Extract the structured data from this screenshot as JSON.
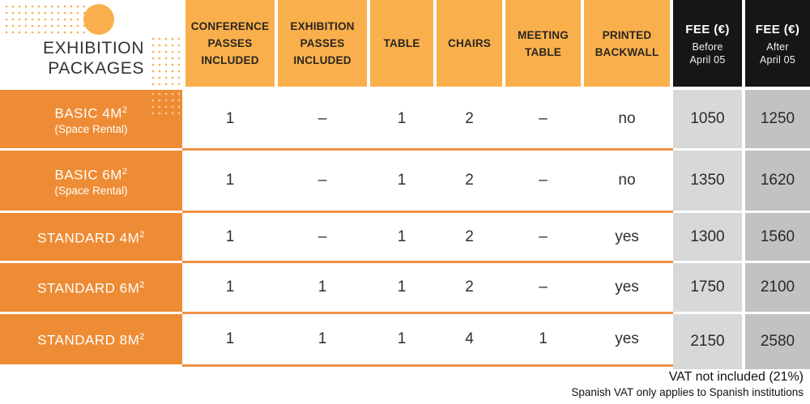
{
  "title": {
    "line1": "EXHIBITION",
    "line2": "PACKAGES"
  },
  "header": {
    "columns": [
      {
        "label": "CONFERENCE PASSES INCLUDED"
      },
      {
        "label": "EXHIBITION PASSES INCLUDED"
      },
      {
        "label": "TABLE"
      },
      {
        "label": "CHAIRS"
      },
      {
        "label": "MEETING TABLE"
      },
      {
        "label": "PRINTED BACKWALL"
      }
    ],
    "fee_columns": [
      {
        "title": "FEE (€)",
        "subtitle_line1": "Before",
        "subtitle_line2": "April 05"
      },
      {
        "title": "FEE (€)",
        "subtitle_line1": "After",
        "subtitle_line2": "April 05"
      }
    ]
  },
  "rows": [
    {
      "name": "BASIC 4M",
      "sup": "2",
      "subtitle": "(Space Rental)",
      "values": [
        "1",
        "–",
        "1",
        "2",
        "–",
        "no"
      ],
      "fee_before": "1050",
      "fee_after": "1250"
    },
    {
      "name": "BASIC 6M",
      "sup": "2",
      "subtitle": "(Space Rental)",
      "values": [
        "1",
        "–",
        "1",
        "2",
        "–",
        "no"
      ],
      "fee_before": "1350",
      "fee_after": "1620"
    },
    {
      "name": "STANDARD 4M",
      "sup": "2",
      "subtitle": "",
      "values": [
        "1",
        "–",
        "1",
        "2",
        "–",
        "yes"
      ],
      "fee_before": "1300",
      "fee_after": "1560"
    },
    {
      "name": "STANDARD 6M",
      "sup": "2",
      "subtitle": "",
      "values": [
        "1",
        "1",
        "1",
        "2",
        "–",
        "yes"
      ],
      "fee_before": "1750",
      "fee_after": "2100"
    },
    {
      "name": "STANDARD 8M",
      "sup": "2",
      "subtitle": "",
      "values": [
        "1",
        "1",
        "1",
        "4",
        "1",
        "yes"
      ],
      "fee_before": "2150",
      "fee_after": "2580"
    }
  ],
  "footer": {
    "line1": "VAT not included (21%)",
    "line2": "Spanish VAT only applies to Spanish institutions"
  },
  "colors": {
    "header_orange": "#F9B04C",
    "row_orange": "#EE8C35",
    "separator_orange": "#F09246",
    "header_black": "#161616",
    "fee_before_gray": "#D8D8D8",
    "fee_after_gray": "#C2C2C2"
  }
}
